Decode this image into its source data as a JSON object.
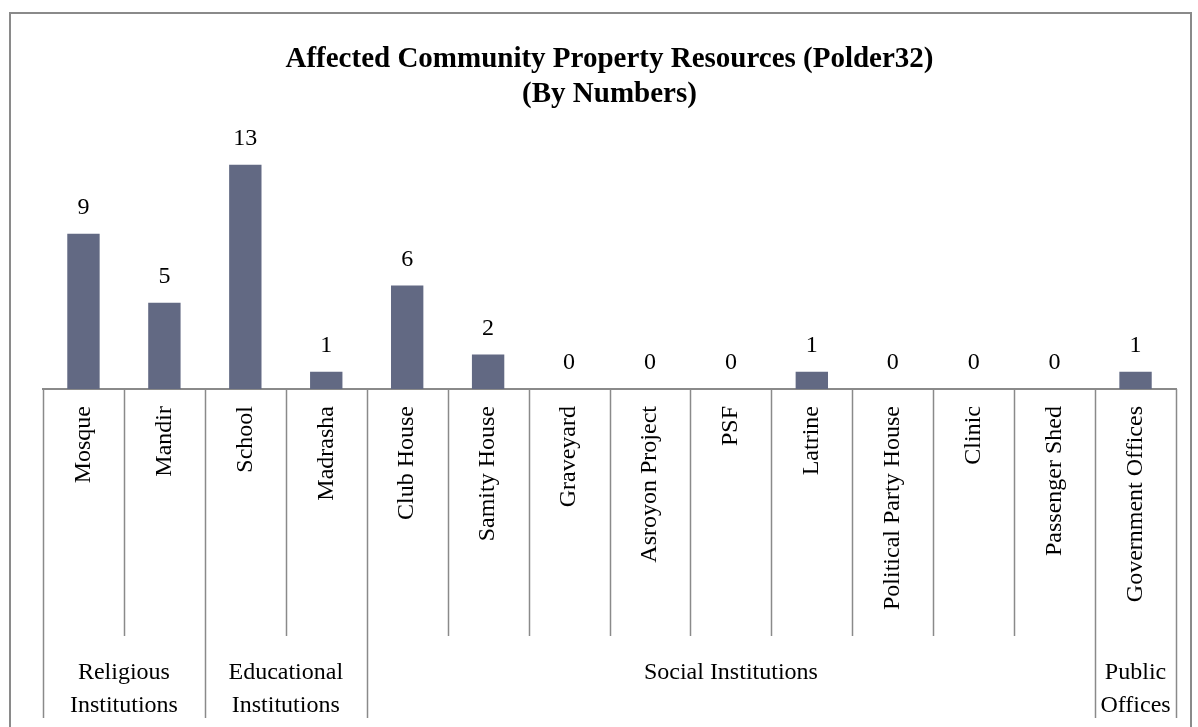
{
  "chart_data": {
    "type": "bar",
    "title": "Affected Community Property Resources (Polder32)",
    "subtitle": "(By Numbers)",
    "categories": [
      "Mosque",
      "Mandir",
      "School",
      "Madrasha",
      "Club House",
      "Samity House",
      "Graveyard",
      "Asroyon Project",
      "PSF",
      "Latrine",
      "Political Party House",
      "Clinic",
      "Passenger Shed",
      "Government Offices"
    ],
    "values": [
      9,
      5,
      13,
      1,
      6,
      2,
      0,
      0,
      0,
      1,
      0,
      0,
      0,
      1
    ],
    "color": "#626983",
    "data_labels": true,
    "tick_labels": "x",
    "annotations": [
      "Religious Institutions",
      "Educational Institutions",
      "Social Institutions",
      "Public Offices"
    ]
  }
}
